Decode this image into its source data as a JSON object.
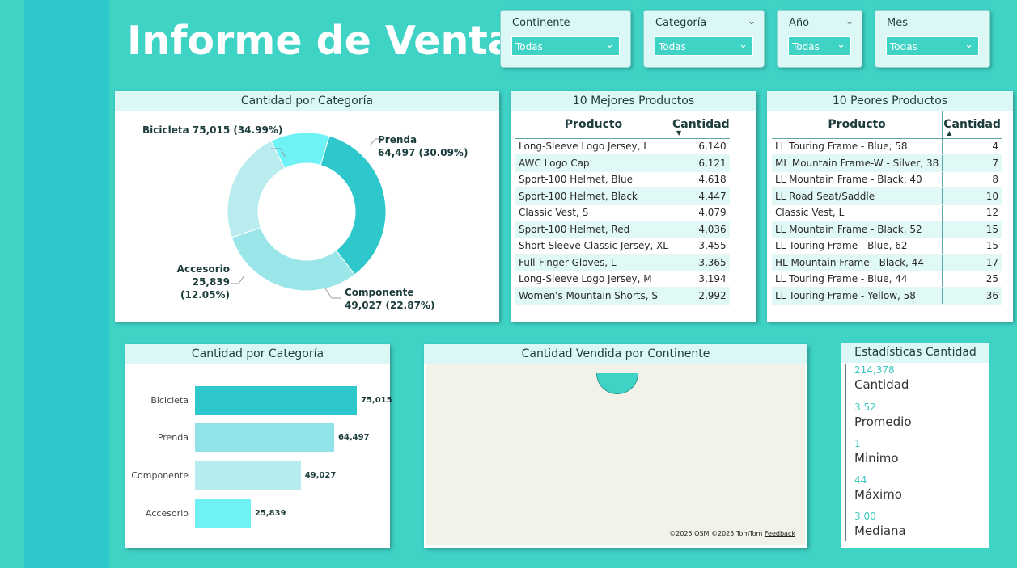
{
  "title": "Informe de Ventas",
  "slicers": [
    {
      "label": "Continente",
      "value": "Todas"
    },
    {
      "label": "Categoría",
      "value": "Todas"
    },
    {
      "label": "Año",
      "value": "Todas"
    },
    {
      "label": "Mes",
      "value": "Todas"
    }
  ],
  "donut": {
    "title": "Cantidad por Categoría",
    "labels": {
      "bicicleta": "Bicicleta 75,015 (34.99%)",
      "prenda_name": "Prenda",
      "prenda_val": "64,497 (30.09%)",
      "accesorio_name": "Accesorio",
      "accesorio_val": "25,839 (12.05%)",
      "componente_name": "Componente",
      "componente_val": "49,027 (22.87%)"
    }
  },
  "top_table": {
    "title": "10 Mejores Productos",
    "col_product": "Producto",
    "col_qty": "Cantidad",
    "rows": [
      [
        "Long-Sleeve Logo Jersey, L",
        "6,140"
      ],
      [
        "AWC Logo Cap",
        "6,121"
      ],
      [
        "Sport-100 Helmet, Blue",
        "4,618"
      ],
      [
        "Sport-100 Helmet, Black",
        "4,447"
      ],
      [
        "Classic Vest, S",
        "4,079"
      ],
      [
        "Sport-100 Helmet, Red",
        "4,036"
      ],
      [
        "Short-Sleeve Classic Jersey, XL",
        "3,455"
      ],
      [
        "Full-Finger Gloves, L",
        "3,365"
      ],
      [
        "Long-Sleeve Logo Jersey, M",
        "3,194"
      ],
      [
        "Women's Mountain Shorts, S",
        "2,992"
      ]
    ]
  },
  "bottom_table": {
    "title": "10 Peores Productos",
    "col_product": "Producto",
    "col_qty": "Cantidad",
    "rows": [
      [
        "LL Touring Frame - Blue, 58",
        "4"
      ],
      [
        "ML Mountain Frame-W - Silver, 38",
        "7"
      ],
      [
        "LL Mountain Frame - Black, 40",
        "8"
      ],
      [
        "LL Road Seat/Saddle",
        "10"
      ],
      [
        "Classic Vest, L",
        "12"
      ],
      [
        "LL Mountain Frame - Black, 52",
        "15"
      ],
      [
        "LL Touring Frame - Blue, 62",
        "15"
      ],
      [
        "HL Mountain Frame - Black, 44",
        "17"
      ],
      [
        "LL Touring Frame - Blue, 44",
        "25"
      ],
      [
        "LL Touring Frame - Yellow, 58",
        "36"
      ]
    ]
  },
  "bar_title": "Cantidad por Categoría",
  "map": {
    "title": "Cantidad Vendida por Continente",
    "credit": "©2025 OSM  ©2025 TomTom",
    "feedback": "Feedback"
  },
  "stats": {
    "title": "Estadísticas Cantidad",
    "items": [
      {
        "value": "214,378",
        "label": "Cantidad"
      },
      {
        "value": "3.52",
        "label": "Promedio"
      },
      {
        "value": "1",
        "label": "Minimo"
      },
      {
        "value": "44",
        "label": "Máximo"
      },
      {
        "value": "3.00",
        "label": "Mediana"
      }
    ]
  },
  "chart_data": [
    {
      "type": "pie",
      "title": "Cantidad por Categoría",
      "categories": [
        "Bicicleta",
        "Prenda",
        "Componente",
        "Accesorio"
      ],
      "values": [
        75015,
        64497,
        49027,
        25839
      ],
      "percentages": [
        34.99,
        30.09,
        22.87,
        12.05
      ],
      "colors": [
        "#2ec7cc",
        "#9ae6e8",
        "#b9ecee",
        "#6ef2f6"
      ]
    },
    {
      "type": "bar",
      "title": "Cantidad por Categoría",
      "categories": [
        "Bicicleta",
        "Prenda",
        "Componente",
        "Accesorio"
      ],
      "values": [
        75015,
        64497,
        49027,
        25839
      ],
      "value_labels": [
        "75,015",
        "64,497",
        "49,027",
        "25,839"
      ],
      "colors": [
        "#2ec7cc",
        "#90e3e8",
        "#b6ecee",
        "#6ef2f6"
      ],
      "orientation": "horizontal"
    }
  ]
}
